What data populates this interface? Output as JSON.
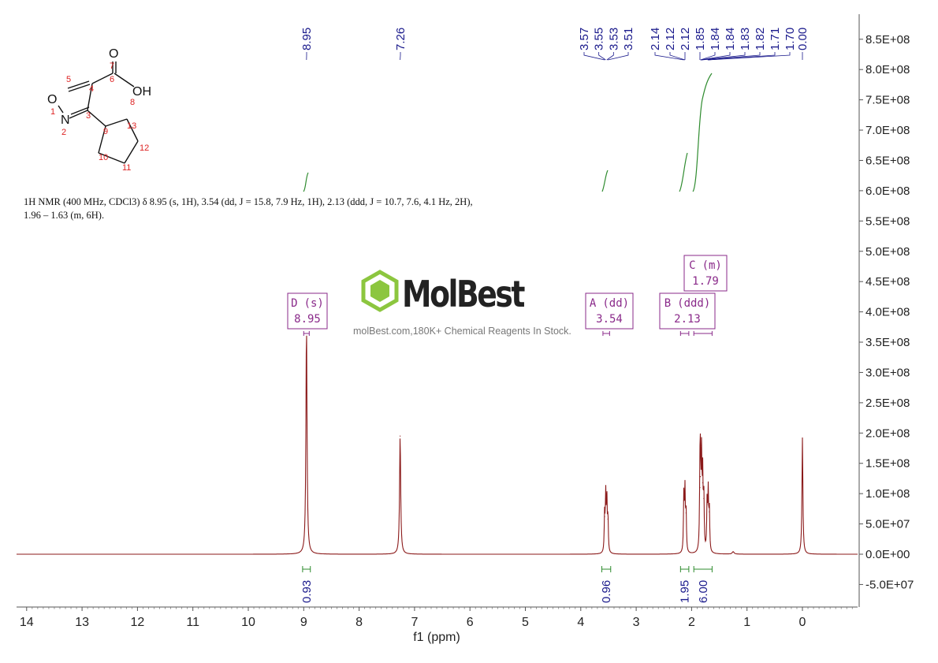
{
  "chart_data": {
    "type": "line",
    "xlabel": "f1 (ppm)",
    "x_ticks": [
      "14",
      "13",
      "12",
      "11",
      "10",
      "9",
      "8",
      "7",
      "6",
      "5",
      "4",
      "3",
      "2",
      "1",
      "0"
    ],
    "xlim": [
      14.2,
      -1.0
    ],
    "y_ticks": [
      "8.5E+08",
      "8.0E+08",
      "7.5E+08",
      "7.0E+08",
      "6.5E+08",
      "6.0E+08",
      "5.5E+08",
      "5.0E+08",
      "4.5E+08",
      "4.0E+08",
      "3.5E+08",
      "3.0E+08",
      "2.5E+08",
      "2.0E+08",
      "1.5E+08",
      "1.0E+08",
      "5.0E+07",
      "0.0E+00",
      "-5.0E+07"
    ],
    "ylim": [
      -88000000,
      890000000
    ],
    "spectrum_peaks": [
      {
        "ppm": 8.95,
        "height": 378000000,
        "width": 0.012
      },
      {
        "ppm": 7.26,
        "height": 195000000,
        "width": 0.012
      },
      {
        "ppm": 3.57,
        "height": 62000000,
        "width": 0.008
      },
      {
        "ppm": 3.55,
        "height": 92000000,
        "width": 0.008
      },
      {
        "ppm": 3.53,
        "height": 88000000,
        "width": 0.008
      },
      {
        "ppm": 3.51,
        "height": 58000000,
        "width": 0.008
      },
      {
        "ppm": 2.14,
        "height": 95000000,
        "width": 0.008
      },
      {
        "ppm": 2.12,
        "height": 100000000,
        "width": 0.008
      },
      {
        "ppm": 2.1,
        "height": 68000000,
        "width": 0.008
      },
      {
        "ppm": 1.85,
        "height": 110000000,
        "width": 0.008
      },
      {
        "ppm": 1.84,
        "height": 128000000,
        "width": 0.008
      },
      {
        "ppm": 1.82,
        "height": 148000000,
        "width": 0.008
      },
      {
        "ppm": 1.8,
        "height": 118000000,
        "width": 0.008
      },
      {
        "ppm": 1.78,
        "height": 92000000,
        "width": 0.008
      },
      {
        "ppm": 1.72,
        "height": 82000000,
        "width": 0.008
      },
      {
        "ppm": 1.7,
        "height": 96000000,
        "width": 0.008
      },
      {
        "ppm": 1.68,
        "height": 70000000,
        "width": 0.008
      },
      {
        "ppm": 1.25,
        "height": 4000000,
        "width": 0.02
      },
      {
        "ppm": 0.0,
        "height": 192000000,
        "width": 0.01
      }
    ],
    "peak_labels": [
      {
        "ppm": 8.95,
        "text": "8.95"
      },
      {
        "ppm": 7.26,
        "text": "7.26"
      },
      {
        "ppm": 3.57,
        "text": "3.57"
      },
      {
        "ppm": 3.55,
        "text": "3.55"
      },
      {
        "ppm": 3.53,
        "text": "3.53"
      },
      {
        "ppm": 3.51,
        "text": "3.51"
      },
      {
        "ppm": 2.14,
        "text": "2.14"
      },
      {
        "ppm": 2.12,
        "text": "2.12"
      },
      {
        "ppm": 2.12,
        "text": "2.12"
      },
      {
        "ppm": 1.85,
        "text": "1.85"
      },
      {
        "ppm": 1.84,
        "text": "1.84"
      },
      {
        "ppm": 1.84,
        "text": "1.84"
      },
      {
        "ppm": 1.83,
        "text": "1.83"
      },
      {
        "ppm": 1.82,
        "text": "1.82"
      },
      {
        "ppm": 1.71,
        "text": "1.71"
      },
      {
        "ppm": 1.7,
        "text": "1.70"
      },
      {
        "ppm": 0.0,
        "text": "0.00"
      }
    ],
    "integrals": [
      {
        "from": 9.02,
        "to": 8.88,
        "value": "0.93"
      },
      {
        "from": 3.62,
        "to": 3.46,
        "value": "0.96"
      },
      {
        "from": 2.2,
        "to": 2.05,
        "value": "1.95"
      },
      {
        "from": 1.96,
        "to": 1.63,
        "value": "6.00"
      }
    ],
    "multiplets": [
      {
        "id": "D",
        "type": "(s)",
        "shift": "8.95",
        "from": 9.0,
        "to": 8.9,
        "level": 400000000
      },
      {
        "id": "A",
        "type": "(dd)",
        "shift": "3.54",
        "from": 3.6,
        "to": 3.48,
        "level": 400000000
      },
      {
        "id": "B",
        "type": "(ddd)",
        "shift": "2.13",
        "from": 2.2,
        "to": 2.05,
        "level": 400000000
      },
      {
        "id": "C",
        "type": "(m)",
        "shift": "1.79",
        "from": 1.96,
        "to": 1.63,
        "level": 465000000
      }
    ],
    "colors": {
      "spectrum": "#8b1a1a",
      "integral": "#2e8b2e",
      "peak_label": "#1a1a8c",
      "multiplet": "#8a2a8a"
    }
  },
  "structure": {
    "atoms": [
      "O",
      "OH",
      "O",
      "N"
    ],
    "numbers": [
      "1",
      "2",
      "3",
      "4",
      "5",
      "6",
      "7",
      "8",
      "9",
      "10",
      "11",
      "12",
      "13"
    ]
  },
  "description": {
    "nmr": "1H NMR (400 MHz, CDCl3) δ 8.95 (s, 1H), 3.54 (dd, J = 15.8, 7.9 Hz, 1H), 2.13 (ddd, J = 10.7, 7.6, 4.1 Hz, 2H), 1.96 – 1.63 (m, 6H)."
  },
  "watermark": {
    "brand": "MolBest",
    "tagline": "molBest.com,180K+ Chemical Reagents In Stock."
  }
}
